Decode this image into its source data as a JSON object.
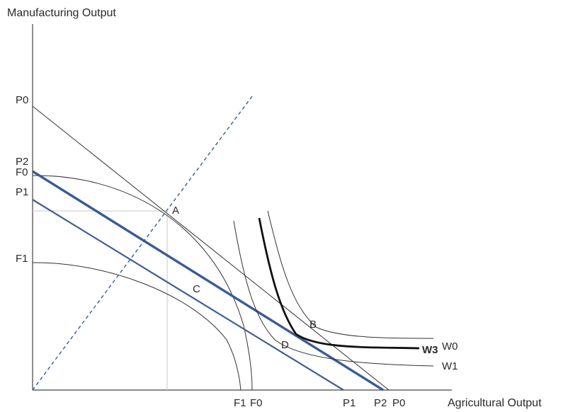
{
  "axes": {
    "y_label": "Manufacturing Output",
    "x_label": "Agricultural Output"
  },
  "y_axis_labels": {
    "p0": "P0",
    "p2": "P2",
    "f0": "F0",
    "p1": "P1",
    "f1": "F1"
  },
  "x_axis_labels": {
    "f1": "F1",
    "f0": "F0",
    "p1": "P1",
    "p2": "P2",
    "p0": "P0"
  },
  "points": {
    "a": "A",
    "b": "B",
    "c": "C",
    "d": "D"
  },
  "curve_labels": {
    "w0": "W0",
    "w3": "W3",
    "w1": "W1"
  }
}
